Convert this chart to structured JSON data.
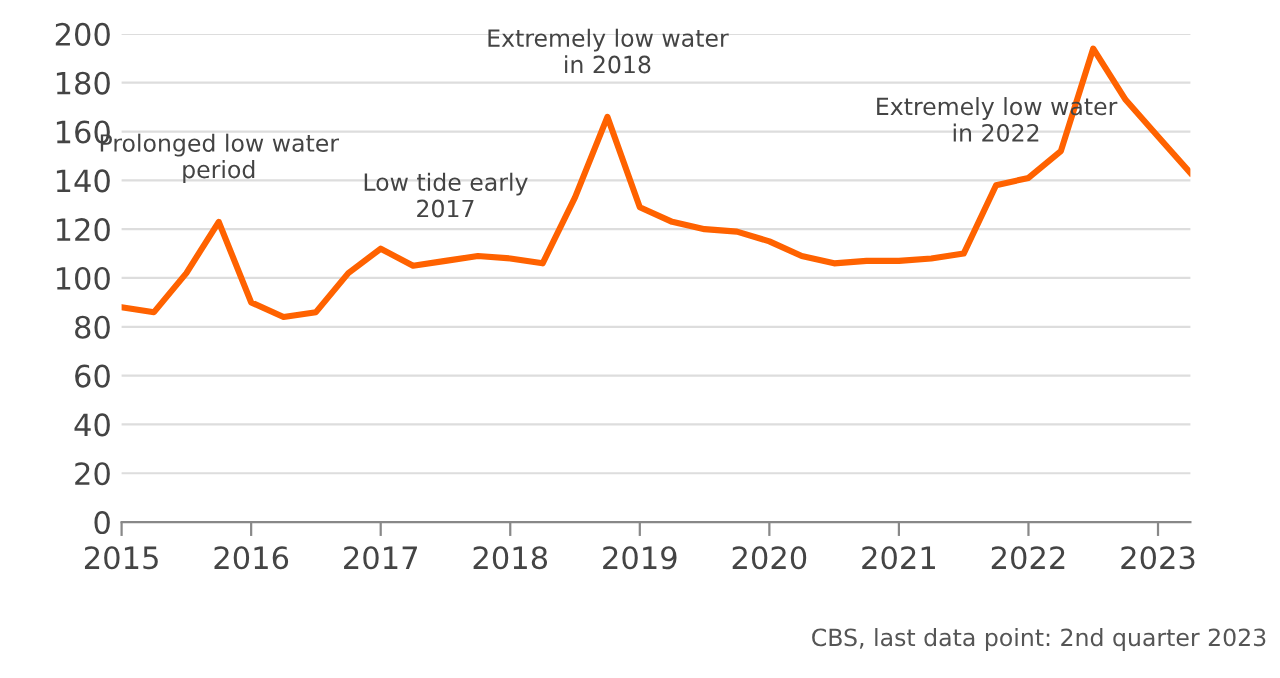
{
  "chart_data": {
    "type": "line",
    "x": [
      2015,
      2015.25,
      2015.5,
      2015.75,
      2016,
      2016.25,
      2016.5,
      2016.75,
      2017,
      2017.25,
      2017.5,
      2017.75,
      2018,
      2018.25,
      2018.5,
      2018.75,
      2019,
      2019.25,
      2019.5,
      2019.75,
      2020,
      2020.25,
      2020.5,
      2020.75,
      2021,
      2021.25,
      2021.5,
      2021.75,
      2022,
      2022.25,
      2022.5,
      2022.75,
      2023,
      2023.25
    ],
    "series": [
      {
        "color": "#ff6200",
        "values": [
          88,
          86,
          102,
          123,
          90,
          84,
          86,
          102,
          112,
          105,
          107,
          109,
          108,
          106,
          133,
          166,
          129,
          123,
          120,
          119,
          115,
          109,
          106,
          107,
          107,
          108,
          110,
          138,
          141,
          152,
          194,
          173,
          158,
          143
        ]
      }
    ],
    "xlim": [
      2015,
      2023.25
    ],
    "xticks": [
      2015,
      2016,
      2017,
      2018,
      2019,
      2020,
      2021,
      2022,
      2023
    ],
    "ylim": [
      0,
      200
    ],
    "yticks": [
      0,
      20,
      40,
      60,
      80,
      100,
      120,
      140,
      160,
      180,
      200
    ],
    "grid": "y",
    "legend": false,
    "marker": "none",
    "line_style": "solid",
    "annotations": [
      {
        "text": "Prolonged low water\nperiod",
        "x": 2015.75,
        "y": 123
      },
      {
        "text": "Low tide early\n2017",
        "x": 2017.5,
        "y": 107
      },
      {
        "text": "Extremely low water\nin 2018",
        "x": 2018.75,
        "y": 166
      },
      {
        "text": "Extremely low water\nin 2022",
        "x": 2021.75,
        "y": 138
      },
      "CBS, last data point: 2nd quarter 2023"
    ]
  }
}
